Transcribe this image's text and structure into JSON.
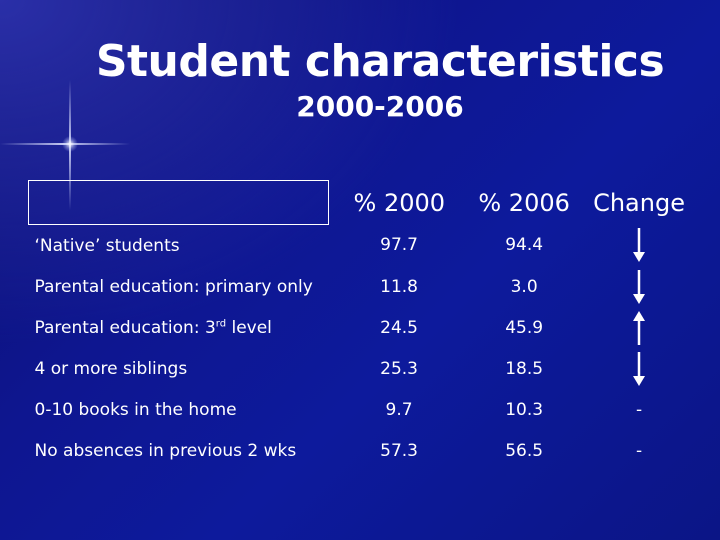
{
  "title": "Student characteristics",
  "subtitle": "2000-2006",
  "table": {
    "headers": [
      "",
      "% 2000",
      "% 2006",
      "Change"
    ],
    "rows": [
      {
        "label": "‘Native’ students",
        "v2000": "97.7",
        "v2006": "94.4",
        "change": "down"
      },
      {
        "label_pre": "Parental education: primary only",
        "label_sup": "",
        "label_post": "",
        "v2000": "11.8",
        "v2006": "3.0",
        "change": "down"
      },
      {
        "label_pre": "Parental education: 3",
        "label_sup": "rd",
        "label_post": " level",
        "v2000": "24.5",
        "v2006": "45.9",
        "change": "up"
      },
      {
        "label": "4 or more siblings",
        "v2000": "25.3",
        "v2006": "18.5",
        "change": "down"
      },
      {
        "label": "0-10 books in the home",
        "v2000": "9.7",
        "v2006": "10.3",
        "change": "-"
      },
      {
        "label": "No absences in previous 2 wks",
        "v2000": "57.3",
        "v2006": "56.5",
        "change": "-"
      }
    ]
  },
  "icons": {
    "down": "arrow-down-icon",
    "up": "arrow-up-icon"
  }
}
